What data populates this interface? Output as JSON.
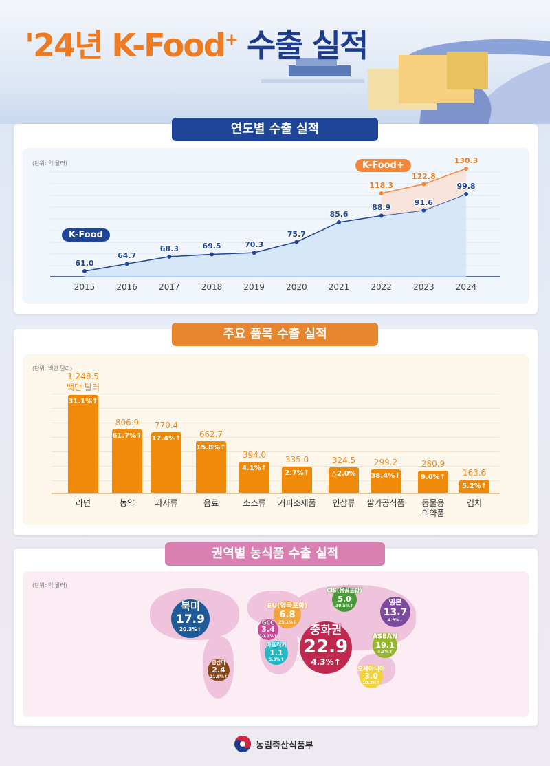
{
  "header": {
    "title_prefix": "'24년 K-Food",
    "title_sup": "+",
    "title_suffix": " 수출 실적"
  },
  "section1": {
    "title": "연도별 수출 실적",
    "unit": "(단위: 억 달러)"
  },
  "section2": {
    "title": "주요 품목 수출 실적",
    "unit": "(단위: 백만 달러)",
    "first_unit_label": "백만 달러"
  },
  "section3": {
    "title": "권역별 농식품 수출 실적",
    "unit": "(단위: 억 달러)"
  },
  "footer": {
    "ministry": "농림축산식품부"
  },
  "colors": {
    "navy": "#1e4597",
    "orange": "#ee8a1e",
    "pink": "#d86aa6",
    "kfood_line": "#1e4597",
    "kfoodplus_line": "#f0873a"
  },
  "chart_data": [
    {
      "type": "line",
      "unit": "억 달러",
      "categories": [
        "2015",
        "2016",
        "2017",
        "2018",
        "2019",
        "2020",
        "2021",
        "2022",
        "2023",
        "2024"
      ],
      "series": [
        {
          "name": "K-Food",
          "values": [
            61.0,
            64.7,
            68.3,
            69.5,
            70.3,
            75.7,
            85.6,
            88.9,
            91.6,
            99.8
          ]
        },
        {
          "name": "K-Food+",
          "x": [
            "2022",
            "2023",
            "2024"
          ],
          "values": [
            118.3,
            122.8,
            130.3
          ]
        }
      ],
      "grid": true
    },
    {
      "type": "bar",
      "unit": "백만 달러",
      "categories": [
        "라면",
        "농약",
        "과자류",
        "음료",
        "소스류",
        "커피조제품",
        "인삼류",
        "쌀가공식품",
        "동물용\n의약품",
        "김치"
      ],
      "values": [
        1248.5,
        806.9,
        770.4,
        662.7,
        394.0,
        335.0,
        324.5,
        299.2,
        280.9,
        163.6
      ],
      "value_labels": [
        "1,248.5",
        "806.9",
        "770.4",
        "662.7",
        "394.0",
        "335.0",
        "324.5",
        "299.2",
        "280.9",
        "163.6"
      ],
      "change_labels": [
        "31.1%↑",
        "61.7%↑",
        "17.4%↑",
        "15.8%↑",
        "4.1%↑",
        "2.7%↑",
        "△2.0%",
        "38.4%↑",
        "9.0%↑",
        "5.2%↑"
      ],
      "grid": true
    },
    {
      "type": "bubble-map",
      "unit": "억 달러",
      "regions": [
        {
          "name": "북미",
          "value": "17.9",
          "change": "20.3%↑",
          "color": "#1f5a98"
        },
        {
          "name": "중남미",
          "value": "2.4",
          "change": "21.8%↑",
          "color": "#8b4a1c"
        },
        {
          "name": "EU(영국포함)",
          "value": "6.8",
          "change": "25.1%↑",
          "color": "#f2a53c"
        },
        {
          "name": "GCC",
          "value": "3.4",
          "change": "10.0%↑",
          "color": "#c84b97"
        },
        {
          "name": "아프리카",
          "value": "1.1",
          "change": "5.9%↑",
          "color": "#26b6c4"
        },
        {
          "name": "CIS(몽골포함)",
          "value": "5.0",
          "change": "30.5%↑",
          "color": "#4a9a3a"
        },
        {
          "name": "중화권",
          "value": "22.9",
          "change": "4.3%↑",
          "color": "#c0294f"
        },
        {
          "name": "일본",
          "value": "13.7",
          "change": "4.3%↓",
          "color": "#7b4a9e"
        },
        {
          "name": "ASEAN",
          "value": "19.1",
          "change": "4.3%↑",
          "color": "#96b42e"
        },
        {
          "name": "오세아니아",
          "value": "3.0",
          "change": "10.2%↑",
          "color": "#f3d33b"
        }
      ]
    }
  ]
}
